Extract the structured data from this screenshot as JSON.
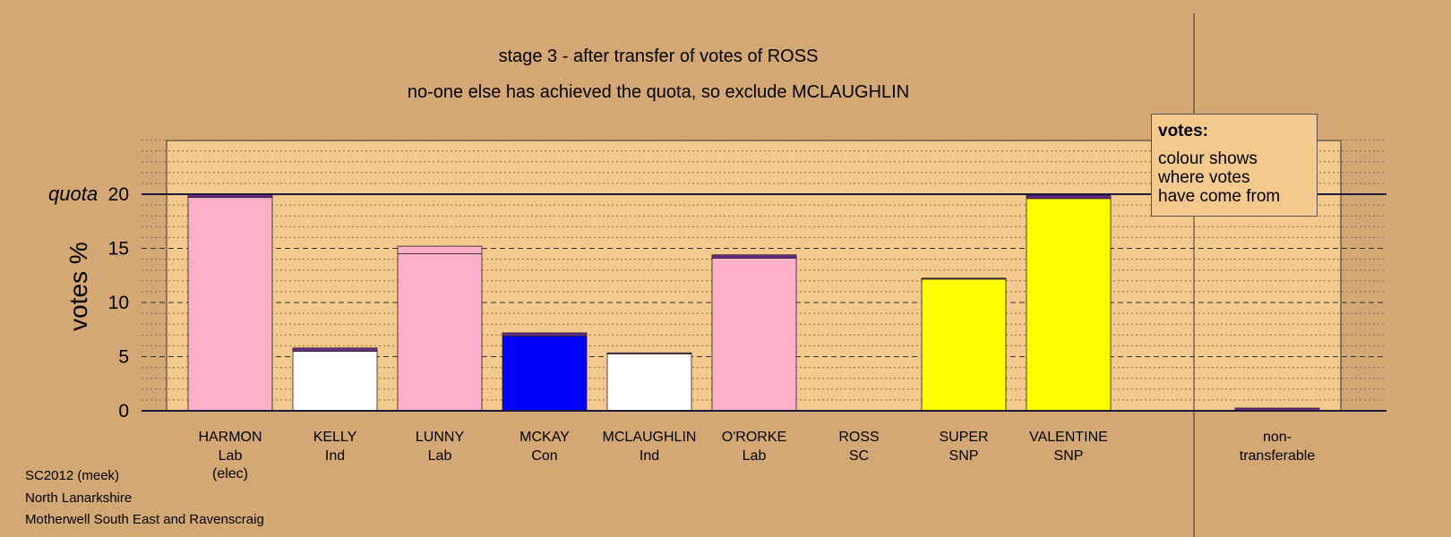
{
  "chart_data": {
    "type": "bar",
    "title": "stage 3 - after transfer of votes of ROSS",
    "subtitle": "no-one else has achieved the quota, so exclude MCLAUGHLIN",
    "ylabel": "votes %",
    "ylim": [
      0,
      25
    ],
    "yticks": [
      0,
      5,
      10,
      15,
      20
    ],
    "quota": {
      "label": "quota",
      "value": 20
    },
    "grid": "dotted minor lines every 1, dashed major lines every 5",
    "categories": [
      {
        "name": "HARMON",
        "party": "Lab",
        "note": "(elec)"
      },
      {
        "name": "KELLY",
        "party": "Ind",
        "note": ""
      },
      {
        "name": "LUNNY",
        "party": "Lab",
        "note": ""
      },
      {
        "name": "MCKAY",
        "party": "Con",
        "note": ""
      },
      {
        "name": "MCLAUGHLIN",
        "party": "Ind",
        "note": ""
      },
      {
        "name": "O'RORKE",
        "party": "Lab",
        "note": ""
      },
      {
        "name": "ROSS",
        "party": "SC",
        "note": ""
      },
      {
        "name": "SUPER",
        "party": "SNP",
        "note": ""
      },
      {
        "name": "VALENTINE",
        "party": "SNP",
        "note": ""
      }
    ],
    "nontransferable_label": [
      "non-",
      "transferable"
    ],
    "bars": [
      {
        "segments": [
          {
            "value": 19.7,
            "color": "#ffb0c8"
          },
          {
            "value": 0.3,
            "color": "#6a2a8a"
          }
        ]
      },
      {
        "segments": [
          {
            "value": 5.5,
            "color": "#ffffff"
          },
          {
            "value": 0.3,
            "color": "#6a2a8a"
          }
        ]
      },
      {
        "segments": [
          {
            "value": 14.5,
            "color": "#ffb0c8"
          },
          {
            "value": 0.7,
            "color": "#ffb0c8"
          }
        ]
      },
      {
        "segments": [
          {
            "value": 6.9,
            "color": "#0000ff"
          },
          {
            "value": 0.3,
            "color": "#6a2a8a"
          }
        ]
      },
      {
        "segments": [
          {
            "value": 5.3,
            "color": "#ffffff"
          },
          {
            "value": 0.05,
            "color": "#6a2a8a"
          }
        ]
      },
      {
        "segments": [
          {
            "value": 14.1,
            "color": "#ffb0c8"
          },
          {
            "value": 0.3,
            "color": "#6a2a8a"
          }
        ]
      },
      {
        "segments": []
      },
      {
        "segments": [
          {
            "value": 12.2,
            "color": "#ffff00"
          },
          {
            "value": 0.05,
            "color": "#6a2a8a"
          }
        ]
      },
      {
        "segments": [
          {
            "value": 19.6,
            "color": "#ffff00"
          },
          {
            "value": 0.3,
            "color": "#6a2a8a"
          }
        ]
      }
    ],
    "nontransferable": {
      "value": 0.25,
      "color": "#6a2a8a"
    },
    "legend": {
      "title": "votes:",
      "lines": [
        "colour shows",
        "where votes",
        "have come from"
      ],
      "placement": "top-right"
    },
    "colors": {
      "background": "#d4a874",
      "plot": "#f4c98e"
    }
  },
  "footer": [
    "SC2012 (meek)",
    "North Lanarkshire",
    "Motherwell South East and Ravenscraig"
  ]
}
